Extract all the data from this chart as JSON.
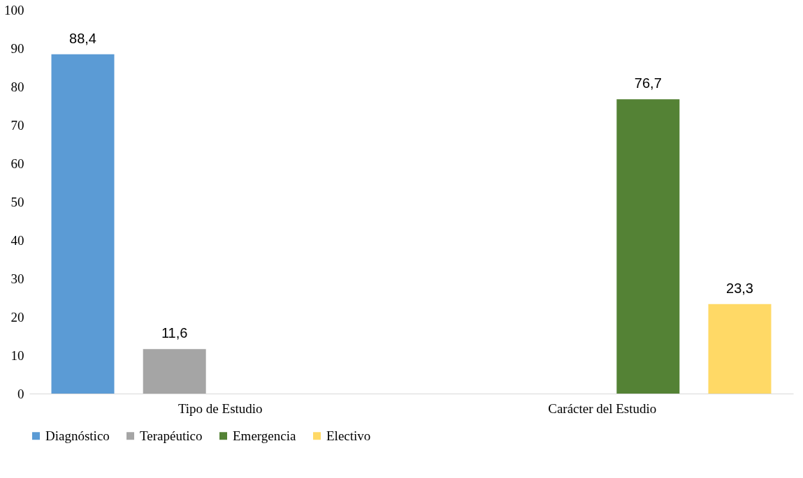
{
  "chart_data": {
    "type": "bar",
    "categories": [
      "Tipo de Estudio",
      "Carácter del Estudio"
    ],
    "series": [
      {
        "name": "Diagnóstico",
        "color": "#5b9bd5",
        "values": [
          88.4,
          null
        ],
        "value_labels": [
          "88,4",
          null
        ]
      },
      {
        "name": "Terapéutico",
        "color": "#a5a5a5",
        "values": [
          11.6,
          null
        ],
        "value_labels": [
          "11,6",
          null
        ]
      },
      {
        "name": "Emergencia",
        "color": "#548235",
        "values": [
          null,
          76.7
        ],
        "value_labels": [
          null,
          "76,7"
        ]
      },
      {
        "name": "Electivo",
        "color": "#ffd966",
        "values": [
          null,
          23.3
        ],
        "value_labels": [
          null,
          "23,3"
        ]
      }
    ],
    "ylim": [
      0,
      100
    ],
    "yticks": [
      0,
      10,
      20,
      30,
      40,
      50,
      60,
      70,
      80,
      90,
      100
    ],
    "grid": false,
    "legend": "bottom"
  }
}
